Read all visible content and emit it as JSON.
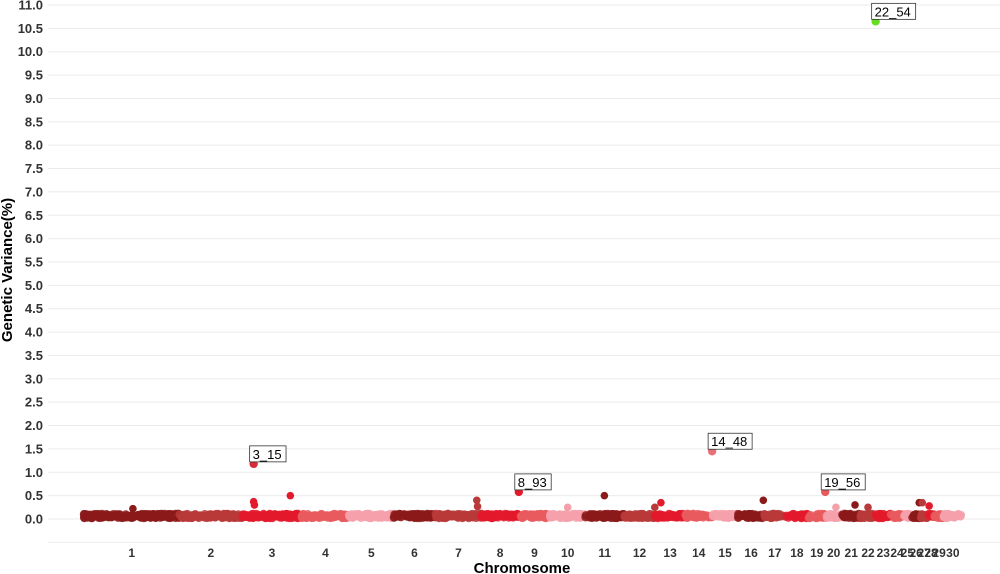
{
  "chart_data": {
    "type": "scatter",
    "title": "",
    "xlabel": "Chromosome",
    "ylabel": "Genetic Variance(%)",
    "ylim": [
      -0.5,
      11.0
    ],
    "ytick_step": 0.5,
    "grid": "horizontal",
    "legend": "none",
    "chromosomes": [
      "1",
      "2",
      "3",
      "4",
      "5",
      "6",
      "7",
      "8",
      "9",
      "10",
      "11",
      "12",
      "13",
      "14",
      "15",
      "16",
      "17",
      "18",
      "19",
      "20",
      "21",
      "22",
      "23",
      "24",
      "25",
      "26",
      "27",
      "28",
      "29",
      "30"
    ],
    "chromosome_sizes": [
      125,
      82,
      78,
      62,
      58,
      55,
      60,
      49,
      41,
      46,
      51,
      40,
      40,
      35,
      34,
      34,
      28,
      30,
      22,
      22,
      24,
      20,
      20,
      16,
      11,
      12,
      9,
      9,
      12,
      24
    ],
    "palette": [
      "#8b1a1a",
      "#b83a3a",
      "#e31a2b",
      "#e85a5e",
      "#f4a0aa"
    ],
    "highlight_color": "#66dd22",
    "background_level": 0.02,
    "annotated_points": [
      {
        "label": "3_15",
        "chromosome": "3",
        "position": 15,
        "value": 1.18,
        "color": "#d62c3a"
      },
      {
        "label": "8_93",
        "chromosome": "8",
        "position": 93,
        "value": 0.58,
        "color": "#e31a2b"
      },
      {
        "label": "14_48",
        "chromosome": "14",
        "position": 48,
        "value": 1.45,
        "color": "#e87078"
      },
      {
        "label": "19_56",
        "chromosome": "19",
        "position": 56,
        "value": 0.58,
        "color": "#e85a5e"
      },
      {
        "label": "22_54",
        "chromosome": "22",
        "position": 54,
        "value": 10.65,
        "color": "#66dd22"
      }
    ],
    "notable_points": [
      {
        "chromosome": "1",
        "position": 64,
        "value": 0.22
      },
      {
        "chromosome": "3",
        "position": 15,
        "value": 0.37
      },
      {
        "chromosome": "3",
        "position": 16,
        "value": 0.3
      },
      {
        "chromosome": "3",
        "position": 63,
        "value": 0.5
      },
      {
        "chromosome": "7",
        "position": 54,
        "value": 0.4
      },
      {
        "chromosome": "7",
        "position": 55,
        "value": 0.27
      },
      {
        "chromosome": "10",
        "position": 23,
        "value": 0.25
      },
      {
        "chromosome": "11",
        "position": 25,
        "value": 0.5
      },
      {
        "chromosome": "12",
        "position": 40,
        "value": 0.25
      },
      {
        "chromosome": "13",
        "position": 8,
        "value": 0.35
      },
      {
        "chromosome": "16",
        "position": 33,
        "value": 0.4
      },
      {
        "chromosome": "20",
        "position": 14,
        "value": 0.25
      },
      {
        "chromosome": "21",
        "position": 17,
        "value": 0.3
      },
      {
        "chromosome": "22",
        "position": 10,
        "value": 0.25
      },
      {
        "chromosome": "26",
        "position": 10,
        "value": 0.35
      },
      {
        "chromosome": "27",
        "position": 2,
        "value": 0.35
      },
      {
        "chromosome": "28",
        "position": 2,
        "value": 0.28
      }
    ]
  }
}
